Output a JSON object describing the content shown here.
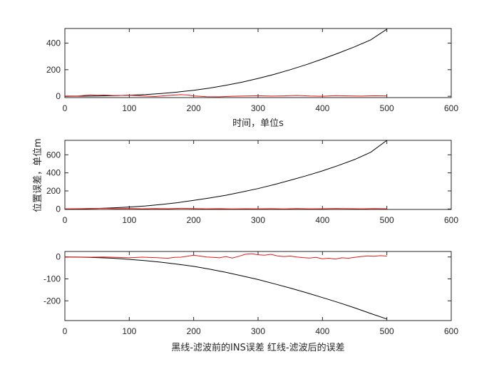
{
  "chart_data": [
    {
      "type": "line",
      "xlabel": "时间，单位s",
      "ylabel": "",
      "xlim": [
        0,
        600
      ],
      "ylim": [
        -10,
        510
      ],
      "xticks": [
        0,
        100,
        200,
        300,
        400,
        500,
        600
      ],
      "yticks": [
        0,
        200,
        400
      ],
      "series": [
        {
          "color": "#000000",
          "x": [
            0,
            25,
            50,
            75,
            100,
            125,
            150,
            175,
            200,
            225,
            250,
            275,
            300,
            325,
            350,
            375,
            400,
            425,
            450,
            475,
            500
          ],
          "values": [
            0,
            0.5,
            2,
            4,
            8,
            13,
            21,
            32,
            45,
            62,
            82,
            106,
            134,
            165,
            200,
            238,
            280,
            325,
            372,
            425,
            505
          ]
        },
        {
          "color": "#e41a1c",
          "x": [
            0,
            20,
            30,
            40,
            50,
            60,
            80,
            100,
            120,
            140,
            160,
            180,
            190,
            200,
            220,
            240,
            260,
            280,
            300,
            320,
            340,
            360,
            380,
            400,
            420,
            440,
            460,
            480,
            500
          ],
          "values": [
            2,
            2,
            6,
            10,
            7,
            9,
            5,
            8,
            3,
            -2,
            6,
            12,
            10,
            3,
            -3,
            -4,
            0,
            2,
            4,
            1,
            3,
            6,
            2,
            0,
            5,
            3,
            1,
            4,
            3
          ]
        }
      ]
    },
    {
      "type": "line",
      "xlabel": "",
      "ylabel": "位置误差，单位m",
      "xlim": [
        0,
        600
      ],
      "ylim": [
        -5,
        760
      ],
      "xticks": [
        0,
        100,
        200,
        300,
        400,
        500,
        600
      ],
      "yticks": [
        0,
        200,
        400,
        600
      ],
      "series": [
        {
          "color": "#000000",
          "x": [
            0,
            25,
            50,
            75,
            100,
            125,
            150,
            175,
            200,
            225,
            250,
            275,
            300,
            325,
            350,
            375,
            400,
            425,
            450,
            475,
            500
          ],
          "values": [
            0,
            2,
            6,
            12,
            22,
            34,
            50,
            70,
            95,
            122,
            152,
            188,
            226,
            270,
            318,
            368,
            422,
            482,
            548,
            628,
            760
          ]
        },
        {
          "color": "#e41a1c",
          "x": [
            0,
            20,
            40,
            60,
            80,
            100,
            120,
            140,
            160,
            180,
            200,
            220,
            240,
            260,
            280,
            300,
            320,
            340,
            360,
            380,
            400,
            420,
            440,
            460,
            480,
            500
          ],
          "values": [
            1,
            3,
            6,
            8,
            4,
            6,
            2,
            5,
            3,
            8,
            5,
            2,
            4,
            1,
            3,
            2,
            4,
            1,
            5,
            2,
            3,
            6,
            4,
            2,
            5,
            3
          ]
        }
      ]
    },
    {
      "type": "line",
      "xlabel": "黑线-滤波前的INS误差   红线-滤波后的误差",
      "ylabel": "",
      "xlim": [
        0,
        600
      ],
      "ylim": [
        -290,
        25
      ],
      "xticks": [
        0,
        100,
        200,
        300,
        400,
        500,
        600
      ],
      "yticks": [
        0,
        -100,
        -200
      ],
      "series": [
        {
          "color": "#000000",
          "x": [
            0,
            25,
            50,
            75,
            100,
            125,
            150,
            175,
            200,
            225,
            250,
            275,
            300,
            325,
            350,
            375,
            400,
            425,
            450,
            475,
            500
          ],
          "values": [
            0,
            -1,
            -3,
            -6,
            -11,
            -17,
            -24,
            -33,
            -43,
            -56,
            -70,
            -86,
            -103,
            -122,
            -142,
            -163,
            -185,
            -208,
            -232,
            -258,
            -283
          ]
        },
        {
          "color": "#e41a1c",
          "x": [
            0,
            20,
            40,
            60,
            80,
            100,
            120,
            140,
            160,
            170,
            180,
            190,
            200,
            210,
            220,
            230,
            240,
            250,
            260,
            270,
            280,
            290,
            300,
            310,
            320,
            330,
            340,
            350,
            360,
            370,
            380,
            390,
            400,
            410,
            420,
            430,
            440,
            450,
            460,
            470,
            480,
            490,
            500
          ],
          "values": [
            0,
            0,
            -1,
            0,
            -2,
            -4,
            -1,
            -3,
            -6,
            -2,
            -1,
            3,
            8,
            4,
            0,
            -2,
            -4,
            2,
            -5,
            3,
            12,
            15,
            10,
            8,
            12,
            5,
            2,
            4,
            0,
            -3,
            -5,
            -2,
            -8,
            -6,
            -10,
            -4,
            -6,
            -2,
            2,
            5,
            3,
            6,
            4
          ]
        }
      ]
    }
  ]
}
